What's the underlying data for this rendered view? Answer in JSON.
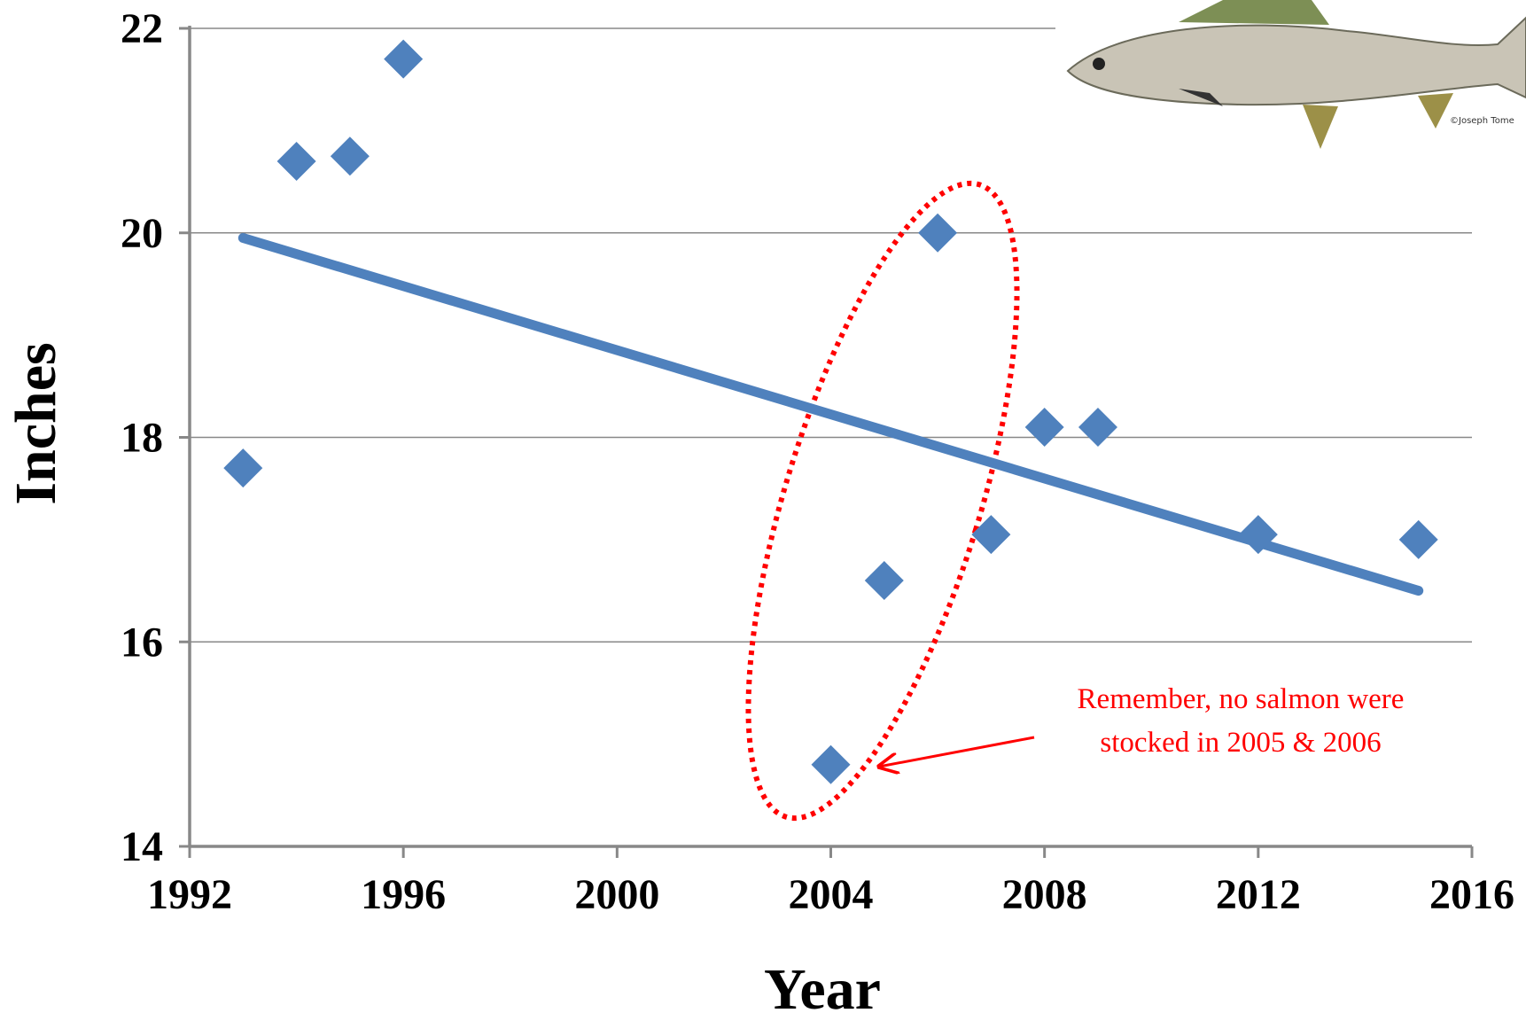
{
  "chart_data": {
    "type": "scatter",
    "x_label": "Year",
    "y_label": "Inches",
    "x": [
      1993,
      1994,
      1995,
      1996,
      2004,
      2005,
      2006,
      2007,
      2008,
      2009,
      2012,
      2015
    ],
    "values": [
      17.7,
      20.7,
      20.75,
      21.7,
      14.8,
      16.6,
      20.0,
      17.05,
      18.1,
      18.1,
      17.05,
      17.0
    ],
    "color": "#4f81bd",
    "trendline": {
      "x": [
        1993,
        2015
      ],
      "values": [
        19.95,
        16.5
      ],
      "color": "#4f81bd"
    },
    "xlim": [
      1992,
      2016
    ],
    "xticks": [
      1992,
      1996,
      2000,
      2004,
      2008,
      2012,
      2016
    ],
    "ylim": [
      14,
      22
    ],
    "yticks": [
      14,
      16,
      18,
      20,
      22
    ],
    "grid": true,
    "annotation": [
      "Remember, no salmon were",
      "stocked in 2005 & 2006"
    ],
    "image_credit": "©Joseph Tome"
  }
}
